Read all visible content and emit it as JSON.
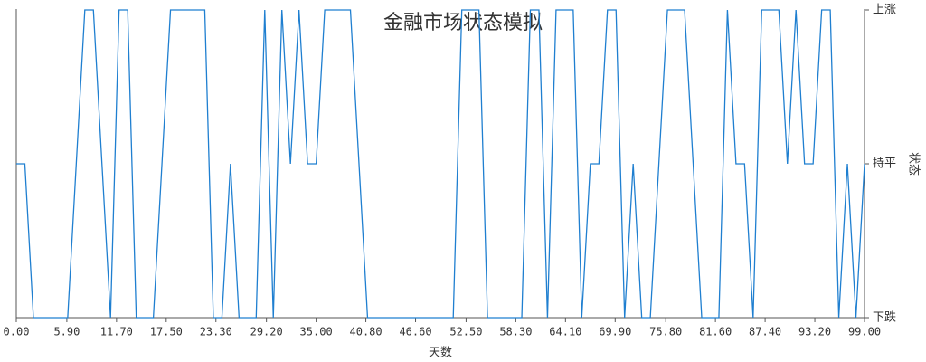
{
  "chart_data": {
    "type": "line",
    "title": "金融市场状态模拟",
    "x_label": "天数",
    "y_label": "状态",
    "x": [
      0,
      1,
      2,
      3,
      4,
      5,
      6,
      7,
      8,
      9,
      10,
      11,
      12,
      13,
      14,
      15,
      16,
      17,
      18,
      19,
      20,
      21,
      22,
      23,
      24,
      25,
      26,
      27,
      28,
      29,
      30,
      31,
      32,
      33,
      34,
      35,
      36,
      37,
      38,
      39,
      40,
      41,
      42,
      43,
      44,
      45,
      46,
      47,
      48,
      49,
      50,
      51,
      52,
      53,
      54,
      55,
      56,
      57,
      58,
      59,
      60,
      61,
      62,
      63,
      64,
      65,
      66,
      67,
      68,
      69,
      70,
      71,
      72,
      73,
      74,
      75,
      76,
      77,
      78,
      79,
      80,
      81,
      82,
      83,
      84,
      85,
      86,
      87,
      88,
      89,
      90,
      91,
      92,
      93,
      94,
      95,
      96,
      97,
      98,
      99
    ],
    "series": [
      {
        "name": "状态",
        "color": "#1f7fd0",
        "values": [
          1,
          1,
          0,
          0,
          0,
          0,
          0,
          1,
          2,
          2,
          1,
          0,
          2,
          2,
          0,
          0,
          0,
          1,
          2,
          2,
          2,
          2,
          2,
          0,
          0,
          1,
          0,
          0,
          0,
          2,
          0,
          2,
          1,
          2,
          1,
          1,
          2,
          2,
          2,
          2,
          1,
          0,
          0,
          0,
          0,
          0,
          0,
          0,
          0,
          0,
          0,
          0,
          2,
          2,
          2,
          0,
          0,
          0,
          0,
          0,
          2,
          2,
          0,
          2,
          2,
          2,
          0,
          1,
          1,
          2,
          2,
          0,
          1,
          0,
          0,
          1,
          2,
          2,
          2,
          1,
          0,
          0,
          0,
          2,
          1,
          1,
          0,
          2,
          2,
          2,
          1,
          2,
          1,
          1,
          2,
          2,
          0,
          1,
          0,
          1
        ]
      }
    ],
    "xlim": [
      0,
      99
    ],
    "ylim": [
      0,
      2
    ],
    "xticks": [
      {
        "value": 0,
        "label": "0.00"
      },
      {
        "value": 5.9,
        "label": "5.90"
      },
      {
        "value": 11.7,
        "label": "11.70"
      },
      {
        "value": 17.5,
        "label": "17.50"
      },
      {
        "value": 23.3,
        "label": "23.30"
      },
      {
        "value": 29.2,
        "label": "29.20"
      },
      {
        "value": 35,
        "label": "35.00"
      },
      {
        "value": 40.8,
        "label": "40.80"
      },
      {
        "value": 46.6,
        "label": "46.60"
      },
      {
        "value": 52.5,
        "label": "52.50"
      },
      {
        "value": 58.3,
        "label": "58.30"
      },
      {
        "value": 64.1,
        "label": "64.10"
      },
      {
        "value": 69.9,
        "label": "69.90"
      },
      {
        "value": 75.8,
        "label": "75.80"
      },
      {
        "value": 81.6,
        "label": "81.60"
      },
      {
        "value": 87.4,
        "label": "87.40"
      },
      {
        "value": 93.2,
        "label": "93.20"
      },
      {
        "value": 99,
        "label": "99.00"
      }
    ],
    "yticks": [
      {
        "value": 0,
        "label": "下跌"
      },
      {
        "value": 1,
        "label": "持平"
      },
      {
        "value": 2,
        "label": "上涨"
      }
    ]
  }
}
